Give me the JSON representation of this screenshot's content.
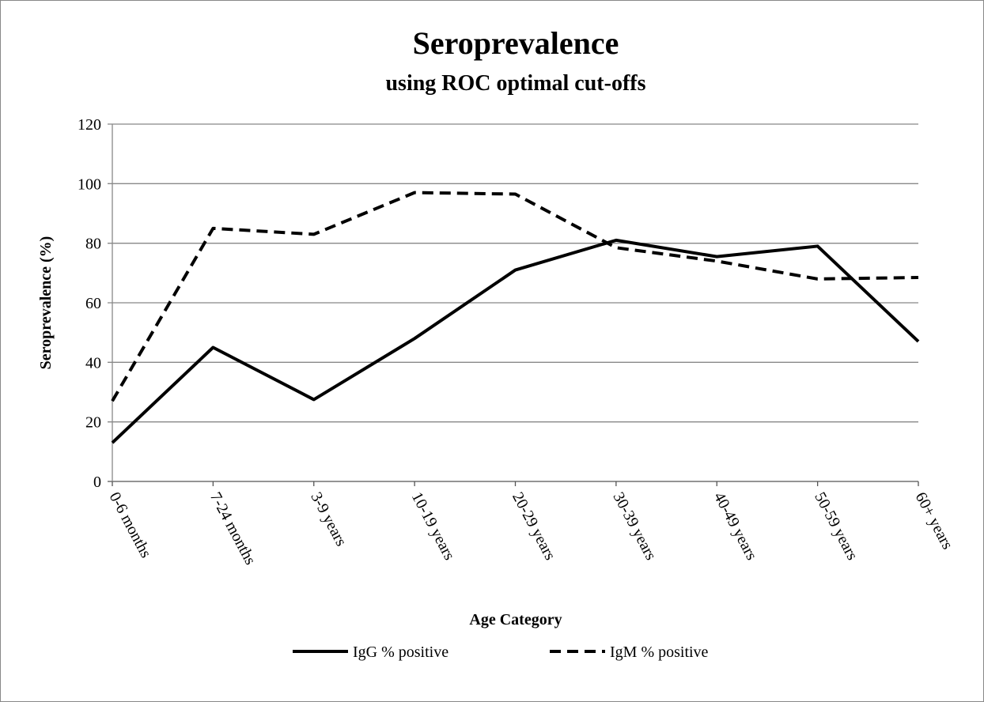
{
  "chart_data": {
    "type": "line",
    "title": "Seroprevalence",
    "subtitle": "using ROC optimal cut-offs",
    "x_label": "Age Category",
    "y_label": "Seroprevalence (%)",
    "categories": [
      "0-6 months",
      "7-24 months",
      "3-9 years",
      "10-19 years",
      "20-29 years",
      "30-39 years",
      "40-49 years",
      "50-59 years",
      "60+ years"
    ],
    "series": [
      {
        "name": "IgG % positive",
        "color": "#000000",
        "dash": "solid",
        "values": [
          13,
          45,
          27.5,
          48,
          71,
          81,
          75.5,
          79,
          47
        ]
      },
      {
        "name": "IgM % positive",
        "color": "#000000",
        "dash": "dashed",
        "values": [
          27,
          85,
          83,
          97,
          96.5,
          78.5,
          74,
          68,
          68.5
        ]
      }
    ],
    "ylim": [
      0,
      120
    ],
    "yticks": [
      0,
      20,
      40,
      60,
      80,
      100,
      120
    ],
    "grid": true,
    "legend": "bottom"
  }
}
